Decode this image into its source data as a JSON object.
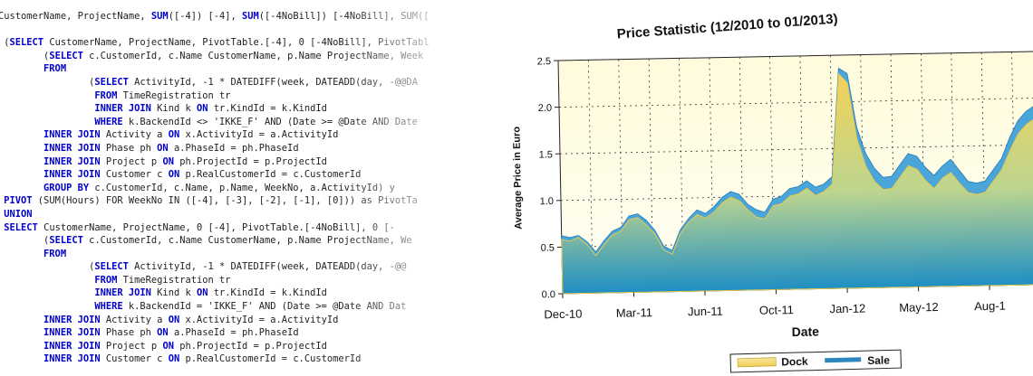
{
  "code": {
    "lines": [
      [
        {
          "t": "CustomerName, ProjectName, ",
          "k": false
        },
        {
          "t": "SUM",
          "k": true
        },
        {
          "t": "([-4]) [-4], ",
          "k": false
        },
        {
          "t": "SUM",
          "k": true
        },
        {
          "t": "([-4NoBill]) [-4NoBill], SUM([",
          "k": false
        }
      ],
      [
        {
          "t": "",
          "k": false
        }
      ],
      [
        {
          "t": " (",
          "k": false
        },
        {
          "t": "SELECT",
          "k": true
        },
        {
          "t": " CustomerName, ProjectName, PivotTable.[-4], 0 [-4NoBill], PivotTabl",
          "k": false
        }
      ],
      [
        {
          "t": "        (",
          "k": false
        },
        {
          "t": "SELECT",
          "k": true
        },
        {
          "t": " c.CustomerId, c.Name CustomerName, p.Name ProjectName, Week",
          "k": false
        }
      ],
      [
        {
          "t": "        ",
          "k": false
        },
        {
          "t": "FROM",
          "k": true
        }
      ],
      [
        {
          "t": "                (",
          "k": false
        },
        {
          "t": "SELECT",
          "k": true
        },
        {
          "t": " ActivityId, -1 * DATEDIFF(week, DATEADD(day, -@@DA",
          "k": false
        }
      ],
      [
        {
          "t": "                 ",
          "k": false
        },
        {
          "t": "FROM",
          "k": true
        },
        {
          "t": " TimeRegistration tr",
          "k": false
        }
      ],
      [
        {
          "t": "                 ",
          "k": false
        },
        {
          "t": "INNER JOIN",
          "k": true
        },
        {
          "t": " Kind k ",
          "k": false
        },
        {
          "t": "ON",
          "k": true
        },
        {
          "t": " tr.KindId = k.KindId",
          "k": false
        }
      ],
      [
        {
          "t": "                 ",
          "k": false
        },
        {
          "t": "WHERE",
          "k": true
        },
        {
          "t": " k.BackendId <> 'IKKE_F' AND (Date >= @Date AND Date",
          "k": false
        }
      ],
      [
        {
          "t": "        ",
          "k": false
        },
        {
          "t": "INNER JOIN",
          "k": true
        },
        {
          "t": " Activity a ",
          "k": false
        },
        {
          "t": "ON",
          "k": true
        },
        {
          "t": " x.ActivityId = a.ActivityId",
          "k": false
        }
      ],
      [
        {
          "t": "        ",
          "k": false
        },
        {
          "t": "INNER JOIN",
          "k": true
        },
        {
          "t": " Phase ph ",
          "k": false
        },
        {
          "t": "ON",
          "k": true
        },
        {
          "t": " a.PhaseId = ph.PhaseId",
          "k": false
        }
      ],
      [
        {
          "t": "        ",
          "k": false
        },
        {
          "t": "INNER JOIN",
          "k": true
        },
        {
          "t": " Project p ",
          "k": false
        },
        {
          "t": "ON",
          "k": true
        },
        {
          "t": " ph.ProjectId = p.ProjectId",
          "k": false
        }
      ],
      [
        {
          "t": "        ",
          "k": false
        },
        {
          "t": "INNER JOIN",
          "k": true
        },
        {
          "t": " Customer c ",
          "k": false
        },
        {
          "t": "ON",
          "k": true
        },
        {
          "t": " p.RealCustomerId = c.CustomerId",
          "k": false
        }
      ],
      [
        {
          "t": "        ",
          "k": false
        },
        {
          "t": "GROUP BY",
          "k": true
        },
        {
          "t": " c.CustomerId, c.Name, p.Name, WeekNo, a.ActivityId) y",
          "k": false
        }
      ],
      [
        {
          "t": " ",
          "k": false
        },
        {
          "t": "PIVOT",
          "k": true
        },
        {
          "t": " (SUM(Hours) FOR WeekNo IN ([-4], [-3], [-2], [-1], [0])) as PivotTa",
          "k": false
        }
      ],
      [
        {
          "t": " ",
          "k": false
        },
        {
          "t": "UNION",
          "k": true
        }
      ],
      [
        {
          "t": " ",
          "k": false
        },
        {
          "t": "SELECT",
          "k": true
        },
        {
          "t": " CustomerName, ProjectName, 0 [-4], PivotTable.[-4NoBill], 0 [-",
          "k": false
        }
      ],
      [
        {
          "t": "        (",
          "k": false
        },
        {
          "t": "SELECT",
          "k": true
        },
        {
          "t": " c.CustomerId, c.Name CustomerName, p.Name ProjectName, We",
          "k": false
        }
      ],
      [
        {
          "t": "        ",
          "k": false
        },
        {
          "t": "FROM",
          "k": true
        }
      ],
      [
        {
          "t": "                (",
          "k": false
        },
        {
          "t": "SELECT",
          "k": true
        },
        {
          "t": " ActivityId, -1 * DATEDIFF(week, DATEADD(day, -@@",
          "k": false
        }
      ],
      [
        {
          "t": "                 ",
          "k": false
        },
        {
          "t": "FROM",
          "k": true
        },
        {
          "t": " TimeRegistration tr",
          "k": false
        }
      ],
      [
        {
          "t": "                 ",
          "k": false
        },
        {
          "t": "INNER JOIN",
          "k": true
        },
        {
          "t": " Kind k ",
          "k": false
        },
        {
          "t": "ON",
          "k": true
        },
        {
          "t": " tr.KindId = k.KindId",
          "k": false
        }
      ],
      [
        {
          "t": "                 ",
          "k": false
        },
        {
          "t": "WHERE",
          "k": true
        },
        {
          "t": " k.BackendId = 'IKKE_F' AND (Date >= @Date AND Dat",
          "k": false
        }
      ],
      [
        {
          "t": "        ",
          "k": false
        },
        {
          "t": "INNER JOIN",
          "k": true
        },
        {
          "t": " Activity a ",
          "k": false
        },
        {
          "t": "ON",
          "k": true
        },
        {
          "t": " x.ActivityId = a.ActivityId",
          "k": false
        }
      ],
      [
        {
          "t": "        ",
          "k": false
        },
        {
          "t": "INNER JOIN",
          "k": true
        },
        {
          "t": " Phase ph ",
          "k": false
        },
        {
          "t": "ON",
          "k": true
        },
        {
          "t": " a.PhaseId = ph.PhaseId",
          "k": false
        }
      ],
      [
        {
          "t": "        ",
          "k": false
        },
        {
          "t": "INNER JOIN",
          "k": true
        },
        {
          "t": " Project p ",
          "k": false
        },
        {
          "t": "ON",
          "k": true
        },
        {
          "t": " ph.ProjectId = p.ProjectId",
          "k": false
        }
      ],
      [
        {
          "t": "        ",
          "k": false
        },
        {
          "t": "INNER JOIN",
          "k": true
        },
        {
          "t": " Customer c ",
          "k": false
        },
        {
          "t": "ON",
          "k": true
        },
        {
          "t": " p.RealCustomerId = c.CustomerId",
          "k": false
        }
      ]
    ]
  },
  "chart_data": {
    "type": "area",
    "title": "Price Statistic (12/2010 to 01/2013)",
    "xlabel": "Date",
    "ylabel": "Average Price in Euro",
    "ylim": [
      0,
      2.5
    ],
    "yticks": [
      "0.0",
      "0.5",
      "1.0",
      "1.5",
      "2.0",
      "2.5"
    ],
    "xticks": [
      "Dec-10",
      "Mar-11",
      "Jun-11",
      "Oct-11",
      "Jan-12",
      "May-12",
      "Aug-1"
    ],
    "grid": true,
    "legend_position": "bottom",
    "colors": {
      "dock": "#f5dc7a",
      "sale": "#3a98cf",
      "plot_bg": "#fffce0"
    },
    "series": [
      {
        "name": "Dock",
        "values": [
          0.58,
          0.56,
          0.6,
          0.52,
          0.4,
          0.52,
          0.62,
          0.66,
          0.78,
          0.8,
          0.72,
          0.62,
          0.45,
          0.4,
          0.62,
          0.74,
          0.82,
          0.78,
          0.84,
          0.94,
          1.0,
          0.96,
          0.86,
          0.78,
          0.76,
          0.9,
          0.92,
          1.0,
          1.02,
          1.08,
          1.0,
          1.04,
          1.12,
          2.3,
          2.2,
          1.6,
          1.3,
          1.14,
          1.05,
          1.06,
          1.18,
          1.3,
          1.26,
          1.14,
          1.05,
          1.16,
          1.22,
          1.1,
          1.0,
          0.98,
          1.0,
          1.12,
          1.24,
          1.44,
          1.62,
          1.72,
          1.78,
          1.74
        ]
      },
      {
        "name": "Sale",
        "values": [
          0.62,
          0.6,
          0.62,
          0.55,
          0.44,
          0.56,
          0.66,
          0.7,
          0.82,
          0.84,
          0.77,
          0.66,
          0.49,
          0.44,
          0.66,
          0.78,
          0.87,
          0.83,
          0.9,
          1.0,
          1.06,
          1.03,
          0.92,
          0.86,
          0.83,
          0.97,
          1.0,
          1.08,
          1.1,
          1.16,
          1.09,
          1.12,
          1.2,
          2.36,
          2.3,
          1.72,
          1.44,
          1.28,
          1.18,
          1.19,
          1.31,
          1.43,
          1.4,
          1.28,
          1.19,
          1.29,
          1.36,
          1.24,
          1.12,
          1.1,
          1.12,
          1.24,
          1.36,
          1.58,
          1.76,
          1.86,
          1.92,
          1.88
        ]
      }
    ]
  }
}
